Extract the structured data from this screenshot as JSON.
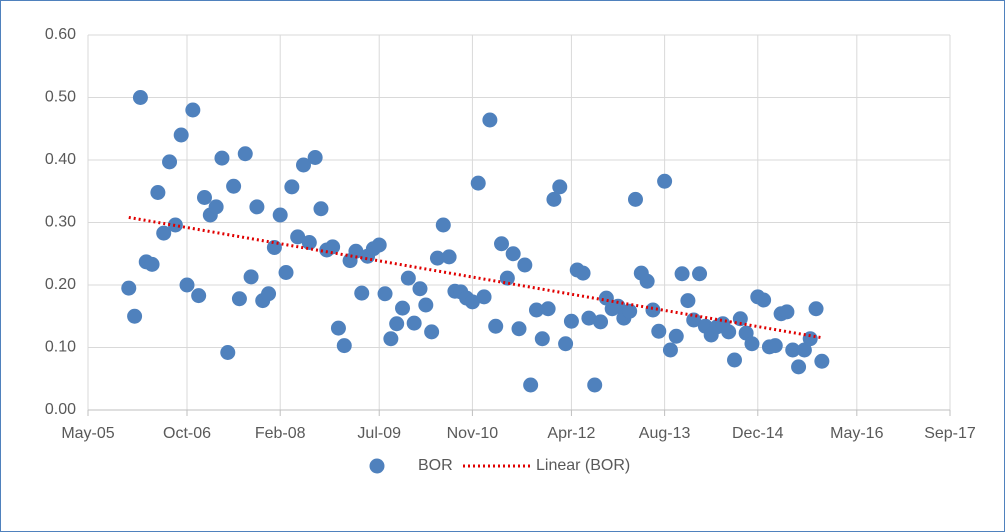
{
  "chart_data": {
    "type": "scatter",
    "series": [
      {
        "name": "BOR",
        "color": "#4f81bd",
        "x": [
          "2005-12",
          "2006-01",
          "2006-02",
          "2006-03",
          "2006-04",
          "2006-05",
          "2006-06",
          "2006-07",
          "2006-08",
          "2006-09",
          "2006-10",
          "2006-11",
          "2006-12",
          "2007-01",
          "2007-02",
          "2007-03",
          "2007-04",
          "2007-05",
          "2007-06",
          "2007-07",
          "2007-08",
          "2007-09",
          "2007-10",
          "2007-11",
          "2007-12",
          "2008-01",
          "2008-02",
          "2008-03",
          "2008-04",
          "2008-05",
          "2008-06",
          "2008-07",
          "2008-08",
          "2008-09",
          "2008-10",
          "2008-11",
          "2008-12",
          "2009-01",
          "2009-02",
          "2009-03",
          "2009-04",
          "2009-05",
          "2009-06",
          "2009-07",
          "2009-08",
          "2009-09",
          "2009-10",
          "2009-11",
          "2009-12",
          "2010-01",
          "2010-02",
          "2010-03",
          "2010-04",
          "2010-05",
          "2010-06",
          "2010-07",
          "2010-08",
          "2010-09",
          "2010-10",
          "2010-11",
          "2010-12",
          "2011-01",
          "2011-02",
          "2011-03",
          "2011-04",
          "2011-05",
          "2011-06",
          "2011-07",
          "2011-08",
          "2011-09",
          "2011-10",
          "2011-11",
          "2011-12",
          "2012-01",
          "2012-02",
          "2012-03",
          "2012-04",
          "2012-05",
          "2012-06",
          "2012-07",
          "2012-08",
          "2012-09",
          "2012-10",
          "2012-11",
          "2012-12",
          "2013-01",
          "2013-02",
          "2013-03",
          "2013-04",
          "2013-05",
          "2013-06",
          "2013-07",
          "2013-08",
          "2013-09",
          "2013-10",
          "2013-11",
          "2013-12",
          "2014-01",
          "2014-02",
          "2014-03",
          "2014-04",
          "2014-05",
          "2014-06",
          "2014-07",
          "2014-08",
          "2014-09",
          "2014-10",
          "2014-11",
          "2014-12",
          "2015-01",
          "2015-02",
          "2015-03",
          "2015-04",
          "2015-05",
          "2015-06",
          "2015-07",
          "2015-08",
          "2015-09",
          "2015-10",
          "2015-11"
        ],
        "values": [
          0.195,
          0.15,
          0.5,
          0.237,
          0.233,
          0.348,
          0.283,
          0.397,
          0.296,
          0.44,
          0.2,
          0.48,
          0.183,
          0.34,
          0.312,
          0.325,
          0.403,
          0.092,
          0.358,
          0.178,
          0.41,
          0.213,
          0.325,
          0.175,
          0.186,
          0.26,
          0.312,
          0.22,
          0.357,
          0.277,
          0.392,
          0.268,
          0.404,
          0.322,
          0.256,
          0.261,
          0.131,
          0.103,
          0.239,
          0.254,
          0.187,
          0.246,
          0.258,
          0.264,
          0.186,
          0.114,
          0.138,
          0.163,
          0.211,
          0.139,
          0.194,
          0.168,
          0.125,
          0.243,
          0.296,
          0.245,
          0.19,
          0.189,
          0.179,
          0.173,
          0.363,
          0.181,
          0.464,
          0.134,
          0.266,
          0.211,
          0.25,
          0.13,
          0.232,
          0.04,
          0.16,
          0.114,
          0.162,
          0.337,
          0.357,
          0.106,
          0.142,
          0.224,
          0.219,
          0.147,
          0.04,
          0.141,
          0.179,
          0.162,
          0.166,
          0.147,
          0.158,
          0.337,
          0.219,
          0.206,
          0.16,
          0.126,
          0.366,
          0.096,
          0.118,
          0.218,
          0.175,
          0.144,
          0.218,
          0.134,
          0.12,
          0.133,
          0.138,
          0.125,
          0.08,
          0.146,
          0.123,
          0.106,
          0.181,
          0.176,
          0.101,
          0.103,
          0.154,
          0.157,
          0.096,
          0.069,
          0.096,
          0.114,
          0.162,
          0.078
        ]
      }
    ],
    "trendline": {
      "name": "Linear (BOR)",
      "kind": "linear",
      "color": "#e00000"
    },
    "xlim": [
      "2005-05",
      "2017-09"
    ],
    "xticks": [
      {
        "value": "2005-05",
        "label": "May-05"
      },
      {
        "value": "2006-10",
        "label": "Oct-06"
      },
      {
        "value": "2008-02",
        "label": "Feb-08"
      },
      {
        "value": "2009-07",
        "label": "Jul-09"
      },
      {
        "value": "2010-11",
        "label": "Nov-10"
      },
      {
        "value": "2012-04",
        "label": "Apr-12"
      },
      {
        "value": "2013-08",
        "label": "Aug-13"
      },
      {
        "value": "2014-12",
        "label": "Dec-14"
      },
      {
        "value": "2016-05",
        "label": "May-16"
      },
      {
        "value": "2017-09",
        "label": "Sep-17"
      }
    ],
    "ylim": [
      0,
      0.6
    ],
    "yticks": [
      {
        "value": 0,
        "label": "0.00"
      },
      {
        "value": 0.1,
        "label": "0.10"
      },
      {
        "value": 0.2,
        "label": "0.20"
      },
      {
        "value": 0.3,
        "label": "0.30"
      },
      {
        "value": 0.4,
        "label": "0.40"
      },
      {
        "value": 0.5,
        "label": "0.50"
      },
      {
        "value": 0.6,
        "label": "0.60"
      }
    ],
    "grid": true,
    "legend": "bottom"
  }
}
